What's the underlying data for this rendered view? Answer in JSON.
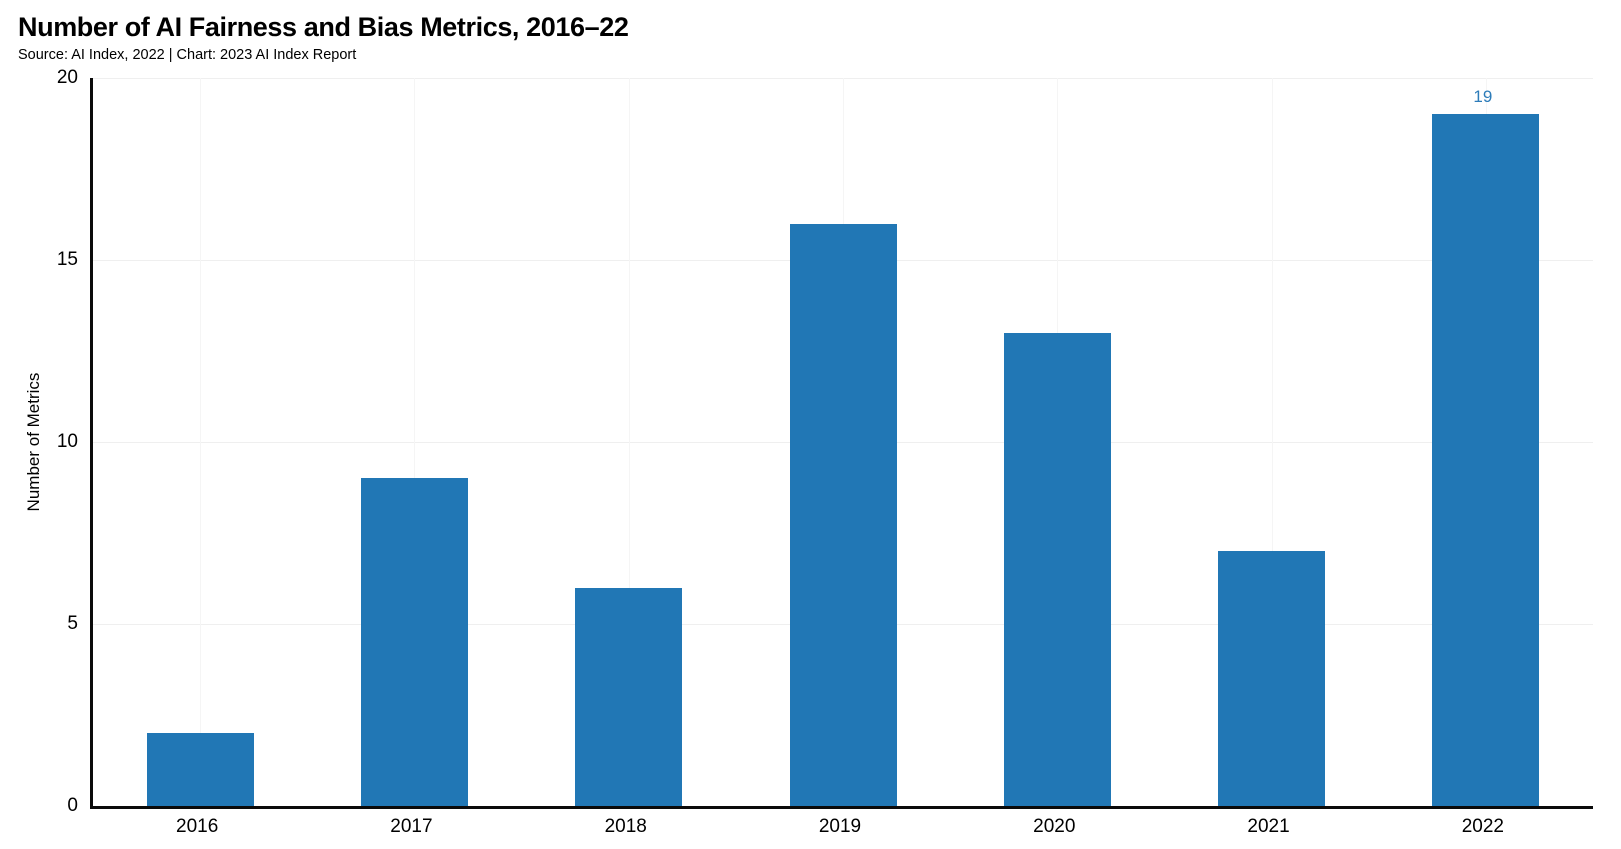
{
  "header": {
    "title": "Number of AI Fairness and Bias Metrics, 2016–22",
    "source": "Source: AI Index, 2022 | Chart: 2023 AI Index Report"
  },
  "chart_data": {
    "type": "bar",
    "title": "Number of AI Fairness and Bias Metrics, 2016–22",
    "source_line": "Source: AI Index, 2022 | Chart: 2023 AI Index Report",
    "categories": [
      "2016",
      "2017",
      "2018",
      "2019",
      "2020",
      "2021",
      "2022"
    ],
    "values": [
      2,
      9,
      6,
      16,
      13,
      7,
      19
    ],
    "xlabel": "",
    "ylabel": "Number of Metrics",
    "ylim": [
      0,
      20
    ],
    "yticks": [
      0,
      5,
      10,
      15,
      20
    ],
    "grid": true,
    "legend_position": "none",
    "colors": {
      "bar": "#2177b5",
      "annotation": "#2d7cb9",
      "axis": "#0a0a0a",
      "hgrid": "#efefef",
      "vgrid": "#f5f5f5"
    },
    "annotations": [
      {
        "category": "2022",
        "text": "19"
      }
    ]
  }
}
